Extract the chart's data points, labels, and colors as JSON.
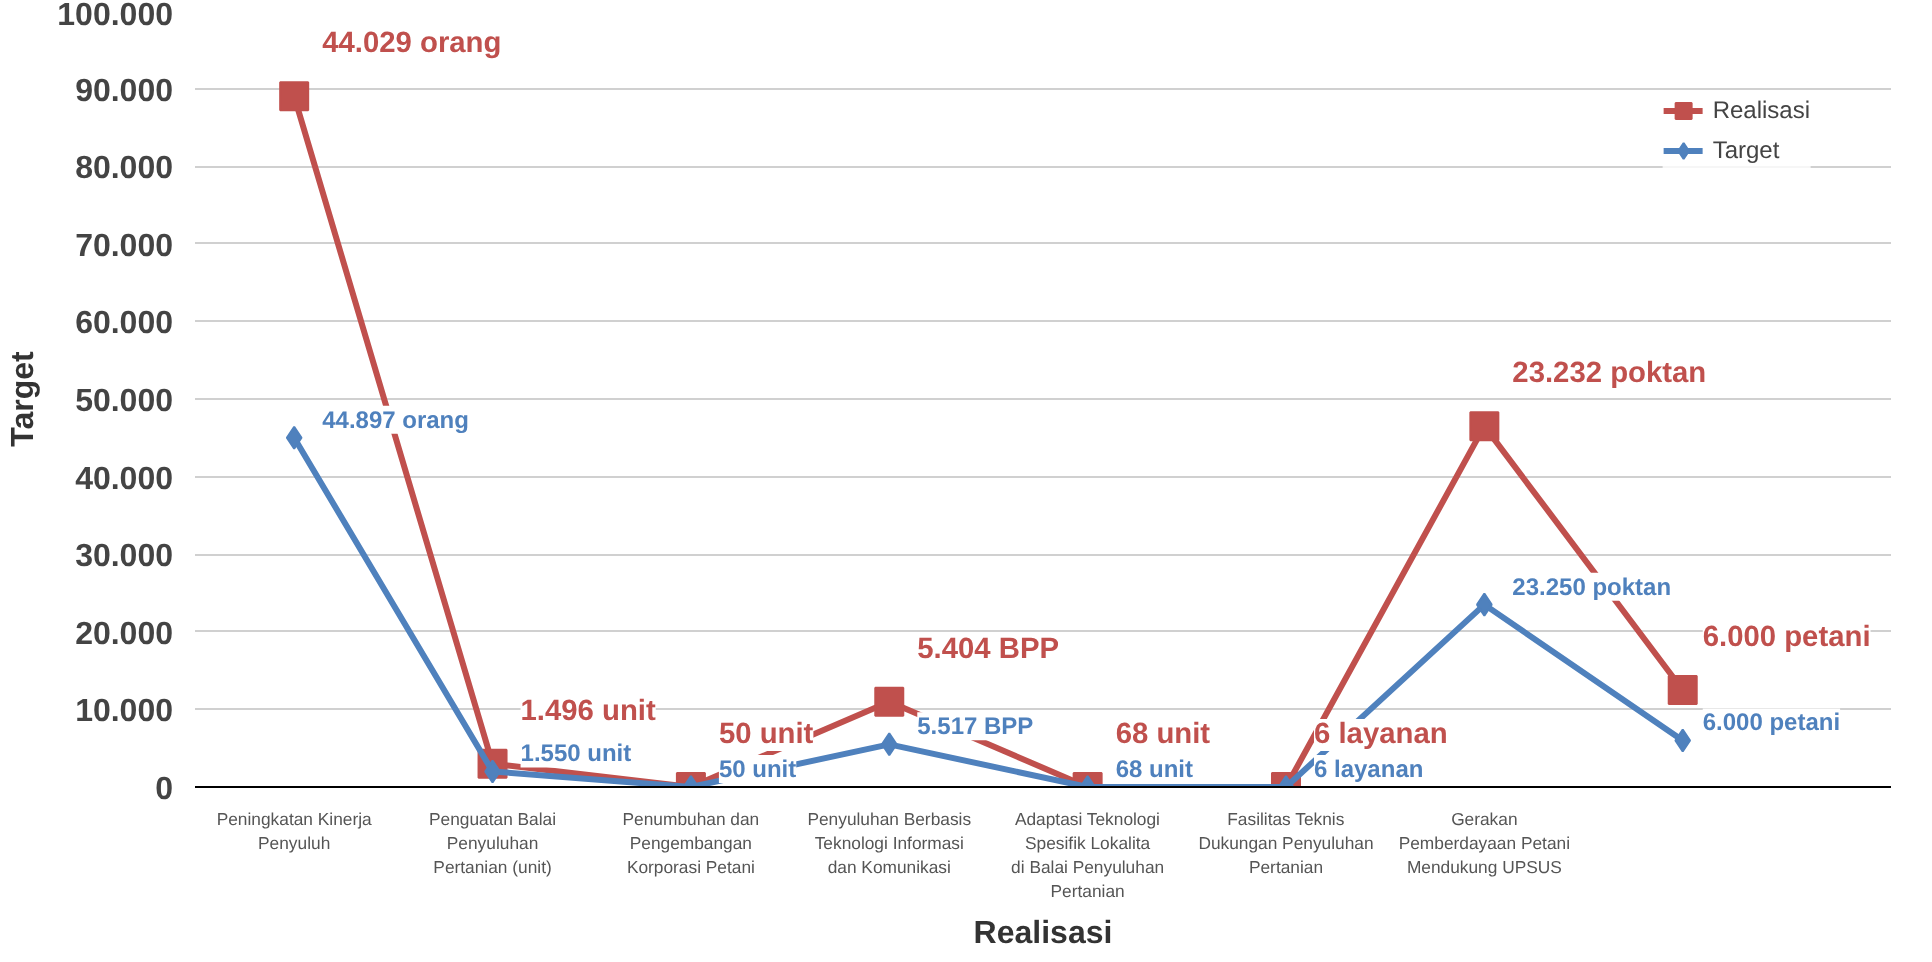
{
  "chart_data": {
    "type": "line",
    "xlabel": "Realisasi",
    "ylabel": "Target",
    "categories": [
      "Peningkatan Kinerja Penyuluh",
      "Penguatan Balai Penyuluhan Pertanian (unit)",
      "Penumbuhan dan Pengembangan Korporasi Petani",
      "Penyuluhan Berbasis Teknologi Informasi dan Komunikasi",
      "Adaptasi Teknologi Spesifik Lokalita di Balai Penyuluhan Pertanian",
      "Fasilitas Teknis Dukungan Penyuluhan Pertanian",
      "Gerakan Pemberdayaan Petani Mendukung UPSUS",
      null
    ],
    "series": [
      {
        "name": "Realisasi",
        "color": "#c0504d",
        "marker": "square",
        "values": [
          89000,
          3000,
          0,
          11000,
          0,
          0,
          46500,
          12500
        ]
      },
      {
        "name": "Target",
        "color": "#4f81bd",
        "marker": "diamond",
        "values": [
          45000,
          2000,
          0,
          5500,
          0,
          0,
          23500,
          6000
        ]
      }
    ],
    "annotations": [
      {
        "text": "44.029 orang",
        "x": "Peningkatan Kinerja Penyuluh",
        "y": 89000
      },
      {
        "text": "44.897 orang",
        "x": "Peningkatan Kinerja Penyuluh",
        "y": 45000
      },
      {
        "text": "1.496 unit",
        "x": "Penguatan Balai Penyuluhan Pertanian (unit)",
        "y": 3000
      },
      {
        "text": "1.550 unit",
        "x": "Penguatan Balai Penyuluhan Pertanian (unit)",
        "y": 2000
      },
      {
        "text": "50 unit",
        "x": "Penumbuhan dan Pengembangan Korporasi Petani",
        "y": 0
      },
      {
        "text": "50 unit",
        "x": "Penumbuhan dan Pengembangan Korporasi Petani",
        "y": 0
      },
      {
        "text": "5.404 BPP",
        "x": "Penyuluhan Berbasis Teknologi Informasi dan Komunikasi",
        "y": 11000
      },
      {
        "text": "5.517 BPP",
        "x": "Penyuluhan Berbasis Teknologi Informasi dan Komunikasi",
        "y": 5500
      },
      {
        "text": "68 unit",
        "x": "Adaptasi Teknologi Spesifik Lokalita di Balai Penyuluhan Pertanian",
        "y": 0
      },
      {
        "text": "68 unit",
        "x": "Adaptasi Teknologi Spesifik Lokalita di Balai Penyuluhan Pertanian",
        "y": 0
      },
      {
        "text": "6 layanan",
        "x": "Fasilitas Teknis Dukungan Penyuluhan Pertanian",
        "y": 0
      },
      {
        "text": "6 layanan",
        "x": "Fasilitas Teknis Dukungan Penyuluhan Pertanian",
        "y": 0
      },
      {
        "text": "23.232 poktan",
        "x": "Gerakan Pemberdayaan Petani Mendukung UPSUS",
        "y": 46500
      },
      {
        "text": "23.250 poktan",
        "x": "Gerakan Pemberdayaan Petani Mendukung UPSUS",
        "y": 23500
      },
      "6.000 petani",
      "6.000 petani"
    ],
    "ylim": [
      0,
      100000
    ],
    "yticks": [
      {
        "value": 0,
        "label": "0"
      },
      {
        "value": 10000,
        "label": "10.000"
      },
      {
        "value": 20000,
        "label": "20.000"
      },
      {
        "value": 30000,
        "label": "30.000"
      },
      {
        "value": 40000,
        "label": "40.000"
      },
      {
        "value": 50000,
        "label": "50.000"
      },
      {
        "value": 60000,
        "label": "60.000"
      },
      {
        "value": 70000,
        "label": "70.000"
      },
      {
        "value": 80000,
        "label": "80.000"
      },
      {
        "value": 90000,
        "label": "90.000"
      },
      {
        "value": 100000,
        "label": "100.000"
      }
    ],
    "grid": "y",
    "legend": "top right"
  }
}
